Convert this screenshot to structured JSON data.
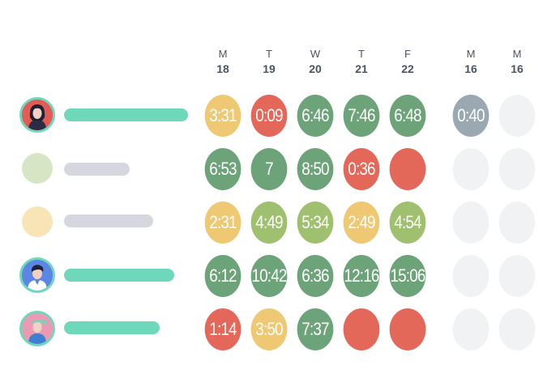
{
  "colors": {
    "green": "#6da379",
    "yellow": "#efc873",
    "red": "#e3685a",
    "lightgreen": "#9fc06e",
    "gray": "#9aa8b2",
    "empty": "#f0f2f4",
    "teal_bar": "#6fd8bb",
    "gray_bar": "#d4d8de"
  },
  "days": [
    {
      "letter": "M",
      "date": "18"
    },
    {
      "letter": "T",
      "date": "19"
    },
    {
      "letter": "W",
      "date": "20"
    },
    {
      "letter": "T",
      "date": "21"
    },
    {
      "letter": "F",
      "date": "22"
    },
    {
      "letter": "M",
      "date": "16"
    },
    {
      "letter": "M",
      "date": "16"
    }
  ],
  "rows": [
    {
      "avatar": "avatar-woman-icon",
      "cells": [
        {
          "text": "3:31",
          "color": "yellow"
        },
        {
          "text": "0:09",
          "color": "red"
        },
        {
          "text": "6:46",
          "color": "green"
        },
        {
          "text": "7:46",
          "color": "green"
        },
        {
          "text": "6:48",
          "color": "green"
        },
        {
          "text": "0:40",
          "color": "gray"
        },
        {
          "text": "",
          "color": "empty"
        }
      ]
    },
    {
      "avatar": "avatar-placeholder-green",
      "cells": [
        {
          "text": "6:53",
          "color": "green"
        },
        {
          "text": "7",
          "color": "green"
        },
        {
          "text": "8:50",
          "color": "green"
        },
        {
          "text": "0:36",
          "color": "red"
        },
        {
          "text": "",
          "color": "red"
        },
        {
          "text": "",
          "color": "empty"
        },
        {
          "text": "",
          "color": "empty"
        }
      ]
    },
    {
      "avatar": "avatar-placeholder-yellow",
      "cells": [
        {
          "text": "2:31",
          "color": "yellow"
        },
        {
          "text": "4:49",
          "color": "lightgreen"
        },
        {
          "text": "5:34",
          "color": "lightgreen"
        },
        {
          "text": "2:49",
          "color": "yellow"
        },
        {
          "text": "4:54",
          "color": "lightgreen"
        },
        {
          "text": "",
          "color": "empty"
        },
        {
          "text": "",
          "color": "empty"
        }
      ]
    },
    {
      "avatar": "avatar-man-icon",
      "cells": [
        {
          "text": "6:12",
          "color": "green"
        },
        {
          "text": "10:42",
          "color": "green"
        },
        {
          "text": "6:36",
          "color": "green"
        },
        {
          "text": "12:16",
          "color": "green"
        },
        {
          "text": "15:06",
          "color": "green"
        },
        {
          "text": "",
          "color": "empty"
        },
        {
          "text": "",
          "color": "empty"
        }
      ]
    },
    {
      "avatar": "avatar-woman-ponytail-icon",
      "cells": [
        {
          "text": "1:14",
          "color": "red"
        },
        {
          "text": "3:50",
          "color": "yellow"
        },
        {
          "text": "7:37",
          "color": "green"
        },
        {
          "text": "",
          "color": "red"
        },
        {
          "text": "",
          "color": "red"
        },
        {
          "text": "",
          "color": "empty"
        },
        {
          "text": "",
          "color": "empty"
        }
      ]
    }
  ]
}
